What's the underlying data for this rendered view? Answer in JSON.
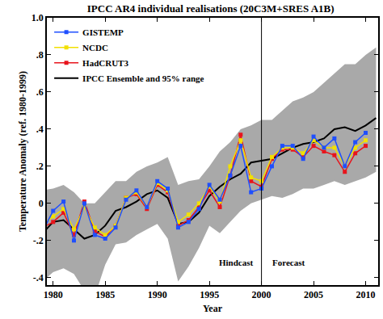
{
  "chart_data": {
    "type": "line",
    "title": "IPCC AR4 individual realisations (20C3M+SRES A1B)",
    "x_label": "Year",
    "y_label": "Temperature Anomaly (ref. 1980-1999)",
    "x": [
      1979,
      1980,
      1981,
      1982,
      1983,
      1984,
      1985,
      1986,
      1987,
      1988,
      1989,
      1990,
      1991,
      1992,
      1993,
      1994,
      1995,
      1996,
      1997,
      1998,
      1999,
      2000,
      2001,
      2002,
      2003,
      2004,
      2005,
      2006,
      2007,
      2008,
      2009,
      2010,
      2011
    ],
    "series": [
      {
        "name": "IPCC Ensemble and 95% range",
        "color": "#000000",
        "line_style": "solid",
        "values": [
          -0.16,
          -0.1,
          -0.09,
          -0.14,
          -0.19,
          -0.17,
          -0.12,
          -0.04,
          -0.02,
          0.01,
          0.05,
          0.07,
          0.03,
          -0.11,
          -0.1,
          -0.05,
          0.04,
          0.09,
          0.13,
          0.16,
          0.22,
          0.23,
          0.24,
          0.27,
          0.3,
          0.32,
          0.33,
          0.35,
          0.4,
          0.41,
          0.39,
          0.42,
          0.46
        ],
        "lower": [
          -0.42,
          -0.37,
          -0.35,
          -0.38,
          -0.47,
          -0.5,
          -0.33,
          -0.22,
          -0.21,
          -0.17,
          -0.14,
          -0.11,
          -0.19,
          -0.42,
          -0.34,
          -0.24,
          -0.12,
          -0.16,
          -0.1,
          -0.04,
          0.0,
          0.02,
          0.04,
          0.03,
          0.05,
          0.08,
          0.08,
          0.1,
          0.12,
          0.1,
          0.12,
          0.14,
          0.17
        ],
        "upper": [
          0.07,
          0.08,
          0.1,
          0.06,
          0.0,
          0.0,
          0.06,
          0.12,
          0.12,
          0.17,
          0.2,
          0.22,
          0.25,
          0.1,
          0.12,
          0.13,
          0.2,
          0.28,
          0.33,
          0.4,
          0.42,
          0.45,
          0.45,
          0.5,
          0.55,
          0.57,
          0.6,
          0.65,
          0.7,
          0.75,
          0.75,
          0.8,
          0.84
        ]
      },
      {
        "name": "HadCRUT3",
        "color": "#e8141c",
        "marker": "square",
        "line_style": "solid",
        "values": [
          -0.13,
          -0.1,
          -0.05,
          -0.17,
          0.01,
          -0.15,
          -0.18,
          -0.12,
          0.03,
          0.05,
          -0.03,
          0.1,
          0.06,
          -0.12,
          -0.09,
          -0.02,
          0.07,
          -0.02,
          0.15,
          0.37,
          0.12,
          0.09,
          0.24,
          0.29,
          0.29,
          0.25,
          0.31,
          0.28,
          0.26,
          0.17,
          0.27,
          0.31,
          null
        ]
      },
      {
        "name": "NCDC",
        "color": "#f2e000",
        "marker": "square",
        "line_style": "solid",
        "values": [
          -0.12,
          -0.07,
          -0.03,
          -0.14,
          -0.02,
          -0.13,
          -0.17,
          -0.12,
          0.03,
          0.06,
          -0.02,
          0.11,
          0.07,
          -0.1,
          -0.06,
          0.0,
          0.09,
          0.01,
          0.2,
          0.34,
          0.14,
          0.12,
          0.25,
          0.3,
          0.3,
          0.27,
          0.34,
          0.3,
          0.3,
          0.2,
          0.3,
          0.34,
          null
        ]
      },
      {
        "name": "GISTEMP",
        "color": "#1f4fff",
        "marker": "square",
        "line_style": "solid",
        "values": [
          -0.15,
          -0.04,
          0.01,
          -0.2,
          0.0,
          -0.17,
          -0.19,
          -0.13,
          0.02,
          0.07,
          -0.02,
          0.12,
          0.08,
          -0.13,
          -0.1,
          -0.03,
          0.1,
          0.02,
          0.15,
          0.31,
          0.06,
          0.08,
          0.2,
          0.31,
          0.31,
          0.24,
          0.36,
          0.3,
          0.35,
          0.2,
          0.33,
          0.38,
          null
        ]
      }
    ],
    "xlim": [
      1979.4,
      2011.2
    ],
    "xticks": [
      1980,
      1985,
      1990,
      1995,
      2000,
      2005,
      2010
    ],
    "ylim": [
      -0.44,
      1.0
    ],
    "yticks": [
      {
        "value": -0.4,
        "label": "-.4"
      },
      {
        "value": -0.2,
        "label": "-.2"
      },
      0,
      {
        "value": 0.2,
        "label": ".2"
      },
      {
        "value": 0.4,
        "label": ".4"
      },
      {
        "value": 0.6,
        "label": ".6"
      },
      {
        "value": 0.8,
        "label": ".8"
      },
      {
        "value": 1.0,
        "label": "1.0"
      }
    ],
    "vlines": [
      2000
    ],
    "annotations": [
      {
        "text": "Hindcast",
        "x": 1997.6,
        "y": -0.32
      },
      {
        "text": "Forecast",
        "x": 2002.6,
        "y": -0.32
      }
    ],
    "grid": false,
    "legend": "upper left"
  }
}
